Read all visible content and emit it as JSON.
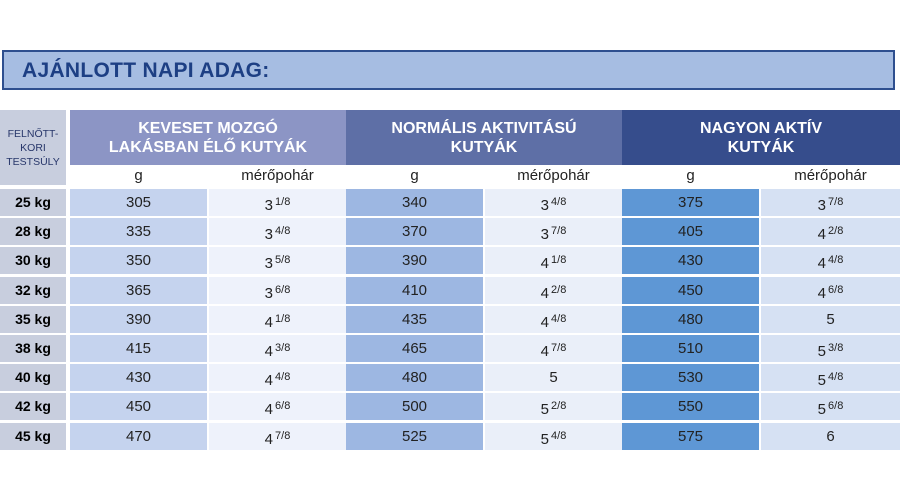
{
  "title": "AJÁNLOTT NAPI ADAG:",
  "weight_header": [
    "FELNŐTT-",
    "KORI",
    "TESTSÚLY"
  ],
  "groups": [
    {
      "lines": [
        "KEVESET MOZGÓ",
        "LAKÁSBAN ÉLŐ  KUTYÁK"
      ],
      "color": "#8c95c5"
    },
    {
      "lines": [
        "NORMÁLIS AKTIVITÁSÚ",
        "KUTYÁK"
      ],
      "color": "#5e6fa6"
    },
    {
      "lines": [
        "NAGYON AKTÍV",
        "KUTYÁK"
      ],
      "color": "#364d8c"
    }
  ],
  "subheaders": [
    "g",
    "mérőpohár",
    "g",
    "mérőpohár",
    "g",
    "mérőpohár"
  ],
  "colors": {
    "g1_g": "#c5d3ee",
    "g1_cup": "#eef2fb",
    "g2_g": "#9db7e2",
    "g2_cup": "#eaeff9",
    "g3_g": "#5e97d5",
    "g3_cup": "#d6e1f3"
  },
  "rows": [
    {
      "weight": "25 kg",
      "cells": [
        [
          "305",
          ""
        ],
        [
          "3",
          "1/8"
        ],
        [
          "340",
          ""
        ],
        [
          "3",
          "4/8"
        ],
        [
          "375",
          ""
        ],
        [
          "3",
          "7/8"
        ]
      ]
    },
    {
      "weight": "28 kg",
      "cells": [
        [
          "335",
          ""
        ],
        [
          "3",
          "4/8"
        ],
        [
          "370",
          ""
        ],
        [
          "3",
          "7/8"
        ],
        [
          "405",
          ""
        ],
        [
          "4",
          "2/8"
        ]
      ]
    },
    {
      "weight": "30 kg",
      "cells": [
        [
          "350",
          ""
        ],
        [
          "3",
          "5/8"
        ],
        [
          "390",
          ""
        ],
        [
          "4",
          "1/8"
        ],
        [
          "430",
          ""
        ],
        [
          "4",
          "4/8"
        ]
      ]
    },
    {
      "weight": "32 kg",
      "cells": [
        [
          "365",
          ""
        ],
        [
          "3",
          "6/8"
        ],
        [
          "410",
          ""
        ],
        [
          "4",
          "2/8"
        ],
        [
          "450",
          ""
        ],
        [
          "4",
          "6/8"
        ]
      ]
    },
    {
      "weight": "35 kg",
      "cells": [
        [
          "390",
          ""
        ],
        [
          "4",
          "1/8"
        ],
        [
          "435",
          ""
        ],
        [
          "4",
          "4/8"
        ],
        [
          "480",
          ""
        ],
        [
          "5",
          ""
        ]
      ]
    },
    {
      "weight": "38 kg",
      "cells": [
        [
          "415",
          ""
        ],
        [
          "4",
          "3/8"
        ],
        [
          "465",
          ""
        ],
        [
          "4",
          "7/8"
        ],
        [
          "510",
          ""
        ],
        [
          "5",
          "3/8"
        ]
      ]
    },
    {
      "weight": "40 kg",
      "cells": [
        [
          "430",
          ""
        ],
        [
          "4",
          "4/8"
        ],
        [
          "480",
          ""
        ],
        [
          "5",
          ""
        ],
        [
          "530",
          ""
        ],
        [
          "5",
          "4/8"
        ]
      ]
    },
    {
      "weight": "42 kg",
      "cells": [
        [
          "450",
          ""
        ],
        [
          "4",
          "6/8"
        ],
        [
          "500",
          ""
        ],
        [
          "5",
          "2/8"
        ],
        [
          "550",
          ""
        ],
        [
          "5",
          "6/8"
        ]
      ]
    },
    {
      "weight": "45 kg",
      "cells": [
        [
          "470",
          ""
        ],
        [
          "4",
          "7/8"
        ],
        [
          "525",
          ""
        ],
        [
          "5",
          "4/8"
        ],
        [
          "575",
          ""
        ],
        [
          "6",
          ""
        ]
      ]
    }
  ]
}
